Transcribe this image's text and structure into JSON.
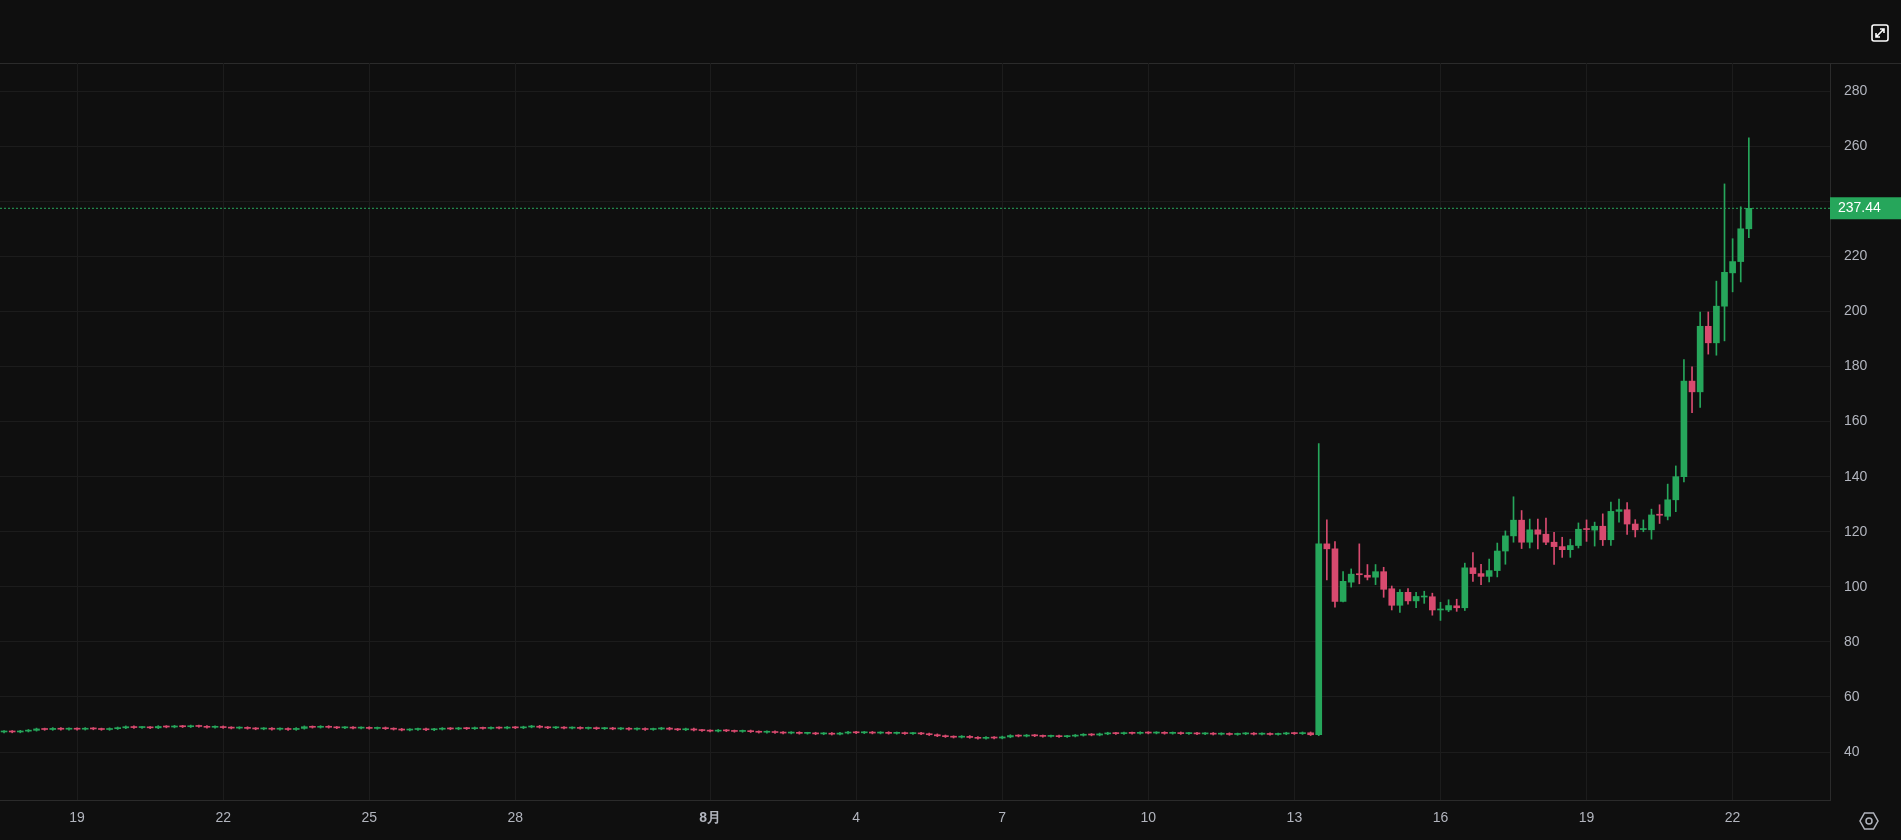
{
  "chart_data": {
    "type": "candlestick",
    "x": [
      "--07-17T12:00",
      "--07-17T16:00",
      "--07-17T20:00",
      "--07-18T00:00",
      "--07-18T04:00",
      "--07-18T08:00",
      "--07-18T12:00",
      "--07-18T16:00",
      "--07-18T20:00",
      "--07-19T00:00",
      "--07-19T04:00",
      "--07-19T08:00",
      "--07-19T12:00",
      "--07-19T16:00",
      "--07-19T20:00",
      "--07-20T00:00",
      "--07-20T04:00",
      "--07-20T08:00",
      "--07-20T12:00",
      "--07-20T16:00",
      "--07-20T20:00",
      "--07-21T00:00",
      "--07-21T04:00",
      "--07-21T08:00",
      "--07-21T12:00",
      "--07-21T16:00",
      "--07-21T20:00",
      "--07-22T00:00",
      "--07-22T04:00",
      "--07-22T08:00",
      "--07-22T12:00",
      "--07-22T16:00",
      "--07-22T20:00",
      "--07-23T00:00",
      "--07-23T04:00",
      "--07-23T08:00",
      "--07-23T12:00",
      "--07-23T16:00",
      "--07-23T20:00",
      "--07-24T00:00",
      "--07-24T04:00",
      "--07-24T08:00",
      "--07-24T12:00",
      "--07-24T16:00",
      "--07-24T20:00",
      "--07-25T00:00",
      "--07-25T04:00",
      "--07-25T08:00",
      "--07-25T12:00",
      "--07-25T16:00",
      "--07-25T20:00",
      "--07-26T00:00",
      "--07-26T04:00",
      "--07-26T08:00",
      "--07-26T12:00",
      "--07-26T16:00",
      "--07-26T20:00",
      "--07-27T00:00",
      "--07-27T04:00",
      "--07-27T08:00",
      "--07-27T12:00",
      "--07-27T16:00",
      "--07-27T20:00",
      "--07-28T00:00",
      "--07-28T04:00",
      "--07-28T08:00",
      "--07-28T12:00",
      "--07-28T16:00",
      "--07-28T20:00",
      "--07-29T00:00",
      "--07-29T04:00",
      "--07-29T08:00",
      "--07-29T12:00",
      "--07-29T16:00",
      "--07-29T20:00",
      "--07-30T00:00",
      "--07-30T04:00",
      "--07-30T08:00",
      "--07-30T12:00",
      "--07-30T16:00",
      "--07-30T20:00",
      "--07-31T00:00",
      "--07-31T04:00",
      "--07-31T08:00",
      "--07-31T12:00",
      "--07-31T16:00",
      "--07-31T20:00",
      "--08-01T00:00",
      "--08-01T04:00",
      "--08-01T08:00",
      "--08-01T12:00",
      "--08-01T16:00",
      "--08-01T20:00",
      "--08-02T00:00",
      "--08-02T04:00",
      "--08-02T08:00",
      "--08-02T12:00",
      "--08-02T16:00",
      "--08-02T20:00",
      "--08-03T00:00",
      "--08-03T04:00",
      "--08-03T08:00",
      "--08-03T12:00",
      "--08-03T16:00",
      "--08-03T20:00",
      "--08-04T00:00",
      "--08-04T04:00",
      "--08-04T08:00",
      "--08-04T12:00",
      "--08-04T16:00",
      "--08-04T20:00",
      "--08-05T00:00",
      "--08-05T04:00",
      "--08-05T08:00",
      "--08-05T12:00",
      "--08-05T16:00",
      "--08-05T20:00",
      "--08-06T00:00",
      "--08-06T04:00",
      "--08-06T08:00",
      "--08-06T12:00",
      "--08-06T16:00",
      "--08-06T20:00",
      "--08-07T00:00",
      "--08-07T04:00",
      "--08-07T08:00",
      "--08-07T12:00",
      "--08-07T16:00",
      "--08-07T20:00",
      "--08-08T00:00",
      "--08-08T04:00",
      "--08-08T08:00",
      "--08-08T12:00",
      "--08-08T16:00",
      "--08-08T20:00",
      "--08-09T00:00",
      "--08-09T04:00",
      "--08-09T08:00",
      "--08-09T12:00",
      "--08-09T16:00",
      "--08-09T20:00",
      "--08-10T00:00",
      "--08-10T04:00",
      "--08-10T08:00",
      "--08-10T12:00",
      "--08-10T16:00",
      "--08-10T20:00",
      "--08-11T00:00",
      "--08-11T04:00",
      "--08-11T08:00",
      "--08-11T12:00",
      "--08-11T16:00",
      "--08-11T20:00",
      "--08-12T00:00",
      "--08-12T04:00",
      "--08-12T08:00",
      "--08-12T12:00",
      "--08-12T16:00",
      "--08-12T20:00",
      "--08-13T00:00",
      "--08-13T04:00",
      "--08-13T08:00",
      "--08-13T12:00",
      "--08-13T16:00",
      "--08-13T20:00",
      "--08-14T00:00",
      "--08-14T04:00",
      "--08-14T08:00",
      "--08-14T12:00",
      "--08-14T16:00",
      "--08-14T20:00",
      "--08-15T00:00",
      "--08-15T04:00",
      "--08-15T08:00",
      "--08-15T12:00",
      "--08-15T16:00",
      "--08-15T20:00",
      "--08-16T00:00",
      "--08-16T04:00",
      "--08-16T08:00",
      "--08-16T12:00",
      "--08-16T16:00",
      "--08-16T20:00",
      "--08-17T00:00",
      "--08-17T04:00",
      "--08-17T08:00",
      "--08-17T12:00",
      "--08-17T16:00",
      "--08-17T20:00",
      "--08-18T00:00",
      "--08-18T04:00",
      "--08-18T08:00",
      "--08-18T12:00",
      "--08-18T16:00",
      "--08-18T20:00",
      "--08-19T00:00",
      "--08-19T04:00",
      "--08-19T08:00",
      "--08-19T12:00",
      "--08-19T16:00",
      "--08-19T20:00",
      "--08-20T00:00",
      "--08-20T04:00",
      "--08-20T08:00",
      "--08-20T12:00",
      "--08-20T16:00",
      "--08-20T20:00",
      "--08-21T00:00",
      "--08-21T04:00",
      "--08-21T08:00",
      "--08-21T12:00",
      "--08-21T16:00",
      "--08-21T20:00",
      "--08-22T00:00",
      "--08-22T04:00",
      "--08-22T08:00"
    ],
    "ohlc": [
      [
        47.3,
        47.8,
        47.0,
        47.5
      ],
      [
        47.5,
        47.8,
        47.0,
        47.3
      ],
      [
        47.3,
        47.9,
        47.0,
        47.6
      ],
      [
        47.6,
        48.2,
        47.3,
        47.9
      ],
      [
        47.9,
        48.7,
        47.6,
        48.4
      ],
      [
        48.4,
        48.7,
        47.9,
        48.2
      ],
      [
        48.2,
        48.9,
        47.9,
        48.6
      ],
      [
        48.6,
        48.9,
        48.0,
        48.3
      ],
      [
        48.3,
        48.8,
        48.0,
        48.5
      ],
      [
        48.5,
        48.8,
        48.0,
        48.3
      ],
      [
        48.3,
        48.9,
        48.0,
        48.6
      ],
      [
        48.6,
        48.9,
        48.1,
        48.4
      ],
      [
        48.4,
        48.7,
        47.9,
        48.2
      ],
      [
        48.2,
        48.8,
        47.9,
        48.5
      ],
      [
        48.5,
        49.1,
        48.2,
        48.8
      ],
      [
        48.8,
        49.5,
        48.5,
        49.2
      ],
      [
        49.2,
        49.5,
        48.6,
        48.9
      ],
      [
        48.9,
        49.3,
        48.6,
        49.0
      ],
      [
        49.0,
        49.3,
        48.5,
        48.8
      ],
      [
        48.8,
        49.6,
        48.5,
        49.3
      ],
      [
        49.3,
        49.6,
        48.8,
        49.1
      ],
      [
        49.1,
        49.7,
        48.8,
        49.4
      ],
      [
        49.4,
        49.7,
        48.9,
        49.2
      ],
      [
        49.2,
        49.8,
        48.9,
        49.5
      ],
      [
        49.5,
        49.8,
        49.0,
        49.3
      ],
      [
        49.3,
        49.6,
        48.7,
        49.0
      ],
      [
        49.0,
        49.5,
        48.7,
        49.2
      ],
      [
        49.2,
        49.5,
        48.6,
        48.9
      ],
      [
        48.9,
        49.2,
        48.4,
        48.7
      ],
      [
        48.7,
        49.2,
        48.4,
        48.9
      ],
      [
        48.9,
        49.2,
        48.3,
        48.6
      ],
      [
        48.6,
        48.9,
        48.1,
        48.4
      ],
      [
        48.4,
        48.9,
        48.1,
        48.6
      ],
      [
        48.6,
        48.9,
        48.0,
        48.3
      ],
      [
        48.3,
        48.8,
        48.0,
        48.5
      ],
      [
        48.5,
        48.8,
        47.9,
        48.2
      ],
      [
        48.2,
        48.9,
        47.9,
        48.6
      ],
      [
        48.6,
        49.5,
        48.3,
        49.2
      ],
      [
        49.2,
        49.5,
        48.7,
        49.0
      ],
      [
        49.0,
        49.6,
        48.7,
        49.3
      ],
      [
        49.3,
        49.6,
        48.7,
        49.0
      ],
      [
        49.0,
        49.3,
        48.5,
        48.8
      ],
      [
        48.8,
        49.3,
        48.5,
        49.0
      ],
      [
        49.0,
        49.3,
        48.4,
        48.7
      ],
      [
        48.7,
        49.2,
        48.4,
        48.9
      ],
      [
        48.9,
        49.2,
        48.3,
        48.6
      ],
      [
        48.6,
        49.1,
        48.3,
        48.8
      ],
      [
        48.8,
        49.1,
        48.2,
        48.5
      ],
      [
        48.5,
        48.8,
        48.0,
        48.3
      ],
      [
        48.3,
        48.6,
        47.7,
        48.0
      ],
      [
        48.0,
        48.5,
        47.7,
        48.2
      ],
      [
        48.2,
        48.7,
        47.9,
        48.4
      ],
      [
        48.4,
        48.7,
        47.8,
        48.1
      ],
      [
        48.1,
        48.6,
        47.8,
        48.3
      ],
      [
        48.3,
        48.9,
        48.0,
        48.6
      ],
      [
        48.6,
        48.9,
        48.1,
        48.4
      ],
      [
        48.4,
        49.0,
        48.1,
        48.7
      ],
      [
        48.7,
        49.0,
        48.2,
        48.5
      ],
      [
        48.5,
        49.1,
        48.2,
        48.8
      ],
      [
        48.8,
        49.1,
        48.3,
        48.6
      ],
      [
        48.6,
        49.2,
        48.3,
        48.9
      ],
      [
        48.9,
        49.2,
        48.4,
        48.7
      ],
      [
        48.7,
        49.3,
        48.4,
        49.0
      ],
      [
        49.0,
        49.3,
        48.5,
        48.8
      ],
      [
        48.8,
        49.4,
        48.5,
        49.1
      ],
      [
        49.1,
        49.7,
        48.8,
        49.4
      ],
      [
        49.4,
        49.7,
        48.7,
        49.0
      ],
      [
        49.0,
        49.3,
        48.5,
        48.8
      ],
      [
        48.8,
        49.3,
        48.5,
        49.0
      ],
      [
        49.0,
        49.3,
        48.4,
        48.7
      ],
      [
        48.7,
        49.2,
        48.4,
        48.9
      ],
      [
        48.9,
        49.2,
        48.3,
        48.6
      ],
      [
        48.6,
        49.1,
        48.3,
        48.8
      ],
      [
        48.8,
        49.1,
        48.2,
        48.5
      ],
      [
        48.5,
        49.0,
        48.2,
        48.7
      ],
      [
        48.7,
        49.0,
        48.1,
        48.4
      ],
      [
        48.4,
        48.9,
        48.1,
        48.6
      ],
      [
        48.6,
        48.9,
        48.0,
        48.3
      ],
      [
        48.3,
        48.8,
        48.0,
        48.5
      ],
      [
        48.5,
        48.8,
        47.9,
        48.2
      ],
      [
        48.2,
        48.7,
        47.9,
        48.4
      ],
      [
        48.4,
        49.0,
        48.1,
        48.7
      ],
      [
        48.7,
        49.0,
        48.0,
        48.3
      ],
      [
        48.3,
        48.6,
        47.8,
        48.1
      ],
      [
        48.1,
        48.7,
        47.8,
        48.4
      ],
      [
        48.4,
        48.7,
        47.7,
        48.0
      ],
      [
        48.0,
        48.3,
        47.5,
        47.8
      ],
      [
        47.8,
        48.1,
        47.3,
        47.6
      ],
      [
        47.6,
        48.2,
        47.3,
        47.9
      ],
      [
        47.9,
        48.2,
        47.4,
        47.7
      ],
      [
        47.7,
        48.0,
        47.2,
        47.5
      ],
      [
        47.5,
        48.0,
        47.2,
        47.7
      ],
      [
        47.7,
        48.0,
        47.1,
        47.4
      ],
      [
        47.4,
        47.7,
        46.9,
        47.2
      ],
      [
        47.2,
        47.7,
        46.9,
        47.4
      ],
      [
        47.4,
        47.7,
        46.8,
        47.1
      ],
      [
        47.1,
        47.4,
        46.6,
        46.9
      ],
      [
        46.9,
        47.4,
        46.6,
        47.1
      ],
      [
        47.1,
        47.4,
        46.5,
        46.8
      ],
      [
        46.8,
        47.2,
        46.5,
        46.9
      ],
      [
        46.9,
        47.2,
        46.3,
        46.6
      ],
      [
        46.6,
        47.1,
        46.3,
        46.8
      ],
      [
        46.8,
        47.1,
        46.2,
        46.5
      ],
      [
        46.5,
        47.2,
        46.2,
        46.9
      ],
      [
        46.9,
        47.5,
        46.6,
        47.2
      ],
      [
        47.2,
        47.5,
        46.7,
        47.0
      ],
      [
        47.0,
        47.5,
        46.7,
        47.2
      ],
      [
        47.2,
        47.5,
        46.6,
        46.9
      ],
      [
        46.9,
        47.4,
        46.6,
        47.1
      ],
      [
        47.1,
        47.4,
        46.5,
        46.8
      ],
      [
        46.8,
        47.3,
        46.5,
        47.0
      ],
      [
        47.0,
        47.3,
        46.4,
        46.7
      ],
      [
        46.7,
        47.2,
        46.4,
        46.9
      ],
      [
        46.9,
        47.2,
        46.3,
        46.6
      ],
      [
        46.6,
        46.9,
        46.0,
        46.3
      ],
      [
        46.3,
        46.6,
        45.6,
        45.9
      ],
      [
        45.9,
        46.2,
        45.3,
        45.6
      ],
      [
        45.6,
        45.9,
        45.1,
        45.4
      ],
      [
        45.4,
        46.0,
        45.1,
        45.7
      ],
      [
        45.7,
        46.0,
        45.0,
        45.3
      ],
      [
        45.3,
        45.6,
        44.7,
        45.0
      ],
      [
        45.0,
        45.6,
        44.7,
        45.3
      ],
      [
        45.3,
        45.6,
        44.8,
        45.1
      ],
      [
        45.1,
        45.8,
        44.8,
        45.5
      ],
      [
        45.5,
        46.3,
        45.2,
        46.0
      ],
      [
        46.0,
        46.3,
        45.5,
        45.8
      ],
      [
        45.8,
        46.4,
        45.5,
        46.1
      ],
      [
        46.1,
        46.4,
        45.6,
        45.9
      ],
      [
        45.9,
        46.2,
        45.4,
        45.7
      ],
      [
        45.7,
        46.2,
        45.4,
        45.9
      ],
      [
        45.9,
        46.2,
        45.3,
        45.6
      ],
      [
        45.6,
        46.1,
        45.3,
        45.8
      ],
      [
        45.8,
        46.4,
        45.5,
        46.1
      ],
      [
        46.1,
        46.7,
        45.8,
        46.4
      ],
      [
        46.4,
        46.7,
        45.9,
        46.2
      ],
      [
        46.2,
        46.9,
        45.9,
        46.6
      ],
      [
        46.6,
        47.2,
        46.3,
        46.9
      ],
      [
        46.9,
        47.2,
        46.4,
        46.7
      ],
      [
        46.7,
        47.3,
        46.4,
        47.0
      ],
      [
        47.0,
        47.3,
        46.5,
        46.8
      ],
      [
        46.8,
        47.4,
        46.5,
        47.1
      ],
      [
        47.1,
        47.4,
        46.6,
        46.9
      ],
      [
        46.9,
        47.4,
        46.6,
        47.1
      ],
      [
        47.1,
        47.4,
        46.5,
        46.8
      ],
      [
        46.8,
        47.3,
        46.5,
        47.0
      ],
      [
        47.0,
        47.3,
        46.4,
        46.7
      ],
      [
        46.7,
        47.2,
        46.4,
        46.9
      ],
      [
        46.9,
        47.2,
        46.3,
        46.6
      ],
      [
        46.6,
        47.1,
        46.3,
        46.8
      ],
      [
        46.8,
        47.1,
        46.2,
        46.5
      ],
      [
        46.5,
        47.0,
        46.2,
        46.7
      ],
      [
        46.7,
        47.0,
        46.1,
        46.4
      ],
      [
        46.4,
        46.9,
        46.1,
        46.6
      ],
      [
        46.6,
        47.1,
        46.3,
        46.8
      ],
      [
        46.8,
        47.1,
        46.2,
        46.5
      ],
      [
        46.5,
        47.0,
        46.2,
        46.7
      ],
      [
        46.7,
        47.0,
        46.1,
        46.4
      ],
      [
        46.4,
        46.9,
        46.1,
        46.6
      ],
      [
        46.6,
        47.2,
        46.3,
        46.9
      ],
      [
        46.9,
        47.2,
        46.4,
        46.7
      ],
      [
        46.7,
        47.3,
        46.4,
        47.0
      ],
      [
        47.0,
        47.3,
        46.0,
        46.3
      ],
      [
        46.3,
        152.0,
        46.0,
        115.6
      ],
      [
        115.6,
        124.3,
        102.5,
        113.8
      ],
      [
        113.8,
        116.4,
        92.6,
        94.7
      ],
      [
        94.7,
        105.5,
        94.5,
        102.0
      ],
      [
        101.7,
        106.5,
        99.9,
        104.6
      ],
      [
        104.6,
        115.6,
        101.1,
        104.4
      ],
      [
        104.2,
        108.1,
        102.5,
        103.5
      ],
      [
        103.5,
        108.1,
        100.8,
        105.5
      ],
      [
        105.5,
        107.1,
        96.2,
        99.1
      ],
      [
        99.3,
        100.3,
        91.6,
        93.3
      ],
      [
        93.3,
        99.0,
        90.7,
        98.0
      ],
      [
        98.0,
        99.4,
        93.7,
        94.9
      ],
      [
        94.9,
        98.0,
        92.4,
        96.5
      ],
      [
        96.3,
        98.4,
        94.0,
        96.4
      ],
      [
        96.4,
        97.7,
        89.7,
        91.6
      ],
      [
        91.6,
        94.4,
        87.8,
        91.9
      ],
      [
        91.6,
        95.3,
        91.0,
        93.2
      ],
      [
        93.1,
        95.5,
        91.1,
        92.4
      ],
      [
        92.4,
        108.6,
        91.4,
        106.9
      ],
      [
        106.9,
        112.4,
        102.0,
        104.8
      ],
      [
        104.8,
        108.2,
        100.8,
        103.8
      ],
      [
        103.8,
        110.1,
        101.8,
        105.9
      ],
      [
        105.9,
        115.9,
        103.6,
        113.0
      ],
      [
        113.0,
        120.3,
        108.2,
        118.5
      ],
      [
        118.5,
        132.7,
        116.2,
        124.2
      ],
      [
        124.2,
        127.7,
        113.9,
        116.2
      ],
      [
        116.2,
        124.6,
        114.1,
        120.7
      ],
      [
        120.7,
        124.6,
        113.8,
        119.1
      ],
      [
        119.1,
        125.0,
        115.3,
        116.2
      ],
      [
        116.2,
        119.8,
        108.1,
        114.6
      ],
      [
        114.6,
        118.0,
        110.7,
        113.5
      ],
      [
        113.5,
        117.3,
        110.7,
        115.0
      ],
      [
        115.0,
        123.2,
        114.1,
        120.9
      ],
      [
        121.0,
        124.3,
        116.5,
        120.8
      ],
      [
        120.6,
        123.5,
        114.8,
        122.0
      ],
      [
        122.0,
        126.5,
        115.0,
        117.1
      ],
      [
        117.1,
        130.8,
        115.0,
        127.4
      ],
      [
        127.4,
        131.9,
        123.5,
        128.0
      ],
      [
        128.0,
        130.6,
        119.0,
        122.8
      ],
      [
        122.8,
        124.4,
        118.1,
        120.7
      ],
      [
        120.8,
        124.3,
        120.0,
        121.0
      ],
      [
        120.7,
        128.2,
        117.3,
        126.1
      ],
      [
        126.2,
        129.8,
        123.0,
        126.0
      ],
      [
        125.6,
        137.3,
        124.3,
        131.6
      ],
      [
        131.6,
        143.9,
        127.3,
        140.0
      ],
      [
        140.0,
        182.5,
        138.1,
        174.7
      ],
      [
        174.7,
        179.9,
        163.2,
        170.8
      ],
      [
        170.8,
        199.8,
        165.1,
        194.6
      ],
      [
        194.6,
        199.8,
        184.5,
        188.6
      ],
      [
        188.6,
        211.0,
        184.1,
        201.9
      ],
      [
        201.9,
        246.3,
        189.3,
        214.2
      ],
      [
        214.0,
        226.4,
        207.1,
        218.1
      ],
      [
        218.1,
        238.0,
        210.7,
        230.0
      ],
      [
        230.0,
        263.0,
        226.8,
        237.44
      ]
    ],
    "colors": [
      "#26a65b",
      "#d84a6f",
      "#26a65b",
      "#26a65b",
      "#26a65b",
      "#d84a6f",
      "#26a65b",
      "#d84a6f",
      "#26a65b",
      "#d84a6f",
      "#26a65b",
      "#d84a6f",
      "#d84a6f",
      "#26a65b",
      "#26a65b",
      "#26a65b",
      "#d84a6f",
      "#26a65b",
      "#d84a6f",
      "#26a65b",
      "#d84a6f",
      "#26a65b",
      "#d84a6f",
      "#26a65b",
      "#d84a6f",
      "#d84a6f",
      "#26a65b",
      "#d84a6f",
      "#d84a6f",
      "#26a65b",
      "#d84a6f",
      "#d84a6f",
      "#26a65b",
      "#d84a6f",
      "#26a65b",
      "#d84a6f",
      "#26a65b",
      "#26a65b",
      "#d84a6f",
      "#26a65b",
      "#d84a6f",
      "#d84a6f",
      "#26a65b",
      "#d84a6f",
      "#26a65b",
      "#d84a6f",
      "#26a65b",
      "#d84a6f",
      "#d84a6f",
      "#d84a6f",
      "#26a65b",
      "#26a65b",
      "#d84a6f",
      "#26a65b",
      "#26a65b",
      "#d84a6f",
      "#26a65b",
      "#d84a6f",
      "#26a65b",
      "#d84a6f",
      "#26a65b",
      "#d84a6f",
      "#26a65b",
      "#d84a6f",
      "#26a65b",
      "#26a65b",
      "#d84a6f",
      "#d84a6f",
      "#26a65b",
      "#d84a6f",
      "#26a65b",
      "#d84a6f",
      "#26a65b",
      "#d84a6f",
      "#26a65b",
      "#d84a6f",
      "#26a65b",
      "#d84a6f",
      "#26a65b",
      "#d84a6f",
      "#26a65b",
      "#26a65b",
      "#d84a6f",
      "#d84a6f",
      "#26a65b",
      "#d84a6f",
      "#d84a6f",
      "#d84a6f",
      "#26a65b",
      "#d84a6f",
      "#d84a6f",
      "#26a65b",
      "#d84a6f",
      "#d84a6f",
      "#26a65b",
      "#d84a6f",
      "#d84a6f",
      "#26a65b",
      "#d84a6f",
      "#26a65b",
      "#d84a6f",
      "#26a65b",
      "#d84a6f",
      "#26a65b",
      "#26a65b",
      "#d84a6f",
      "#26a65b",
      "#d84a6f",
      "#26a65b",
      "#d84a6f",
      "#26a65b",
      "#d84a6f",
      "#26a65b",
      "#d84a6f",
      "#d84a6f",
      "#d84a6f",
      "#d84a6f",
      "#d84a6f",
      "#26a65b",
      "#d84a6f",
      "#d84a6f",
      "#26a65b",
      "#d84a6f",
      "#26a65b",
      "#26a65b",
      "#d84a6f",
      "#26a65b",
      "#d84a6f",
      "#d84a6f",
      "#26a65b",
      "#d84a6f",
      "#26a65b",
      "#26a65b",
      "#26a65b",
      "#d84a6f",
      "#26a65b",
      "#26a65b",
      "#d84a6f",
      "#26a65b",
      "#d84a6f",
      "#26a65b",
      "#d84a6f",
      "#26a65b",
      "#d84a6f",
      "#26a65b",
      "#d84a6f",
      "#26a65b",
      "#d84a6f",
      "#26a65b",
      "#d84a6f",
      "#26a65b",
      "#d84a6f",
      "#26a65b",
      "#26a65b",
      "#d84a6f",
      "#26a65b",
      "#d84a6f",
      "#26a65b",
      "#26a65b",
      "#d84a6f",
      "#26a65b",
      "#d84a6f",
      "#26a65b",
      "#d84a6f",
      "#d84a6f",
      "#26a65b",
      "#26a65b",
      "#d84a6f",
      "#d84a6f",
      "#26a65b",
      "#d84a6f",
      "#d84a6f",
      "#26a65b",
      "#d84a6f",
      "#26a65b",
      "#26a65b",
      "#d84a6f",
      "#26a65b",
      "#26a65b",
      "#d84a6f",
      "#26a65b",
      "#d84a6f",
      "#d84a6f",
      "#26a65b",
      "#26a65b",
      "#26a65b",
      "#26a65b",
      "#d84a6f",
      "#26a65b",
      "#d84a6f",
      "#d84a6f",
      "#d84a6f",
      "#d84a6f",
      "#26a65b",
      "#26a65b",
      "#d84a6f",
      "#26a65b",
      "#d84a6f",
      "#26a65b",
      "#26a65b",
      "#d84a6f",
      "#d84a6f",
      "#26a65b",
      "#26a65b",
      "#d84a6f",
      "#26a65b",
      "#26a65b",
      "#26a65b",
      "#d84a6f",
      "#26a65b",
      "#d84a6f",
      "#26a65b",
      "#26a65b",
      "#26a65b",
      "#26a65b",
      "#26a65b"
    ],
    "xlim": [
      "--07-17T10:00",
      "--08-24T00:00"
    ],
    "xticks": [
      {
        "value": "--07-19",
        "label": "19"
      },
      {
        "value": "--07-22",
        "label": "22"
      },
      {
        "value": "--07-25",
        "label": "25"
      },
      {
        "value": "--07-28",
        "label": "28"
      },
      {
        "value": "--08-01",
        "label": "8月"
      },
      {
        "value": "--08-04",
        "label": "4"
      },
      {
        "value": "--08-07",
        "label": "7"
      },
      {
        "value": "--08-10",
        "label": "10"
      },
      {
        "value": "--08-13",
        "label": "13"
      },
      {
        "value": "--08-16",
        "label": "16"
      },
      {
        "value": "--08-19",
        "label": "19"
      },
      {
        "value": "--08-22",
        "label": "22"
      }
    ],
    "ylim": [
      22.6,
      290.2
    ],
    "yticks": [
      40,
      60,
      80,
      100,
      120,
      140,
      160,
      180,
      200,
      220,
      {
        "value": 240,
        "label": null
      },
      260,
      280
    ],
    "grid": true,
    "ref_lines": [
      {
        "axis": "y",
        "value": 237.44,
        "label": "237.44",
        "color": "#26a65b",
        "line_style": "dotted"
      }
    ]
  }
}
